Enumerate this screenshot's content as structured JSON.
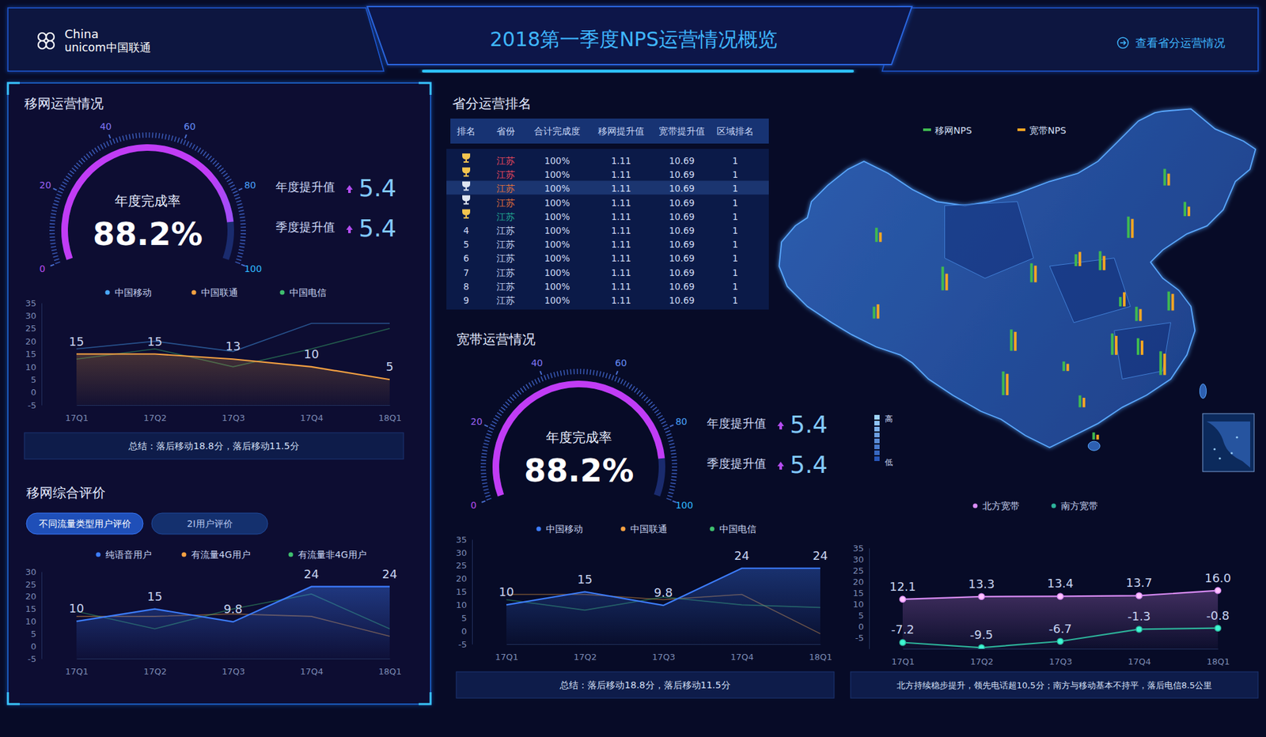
{
  "header": {
    "logo": [
      "China",
      "unicom中国联通"
    ],
    "title": "2018第一季度NPS运营情况概览",
    "link": "查看省分运营情况"
  },
  "panels": {
    "mobile_ops": "移网运营情况",
    "mobile_eval": "移网综合评价",
    "ranking": "省分运营排名",
    "broadband": "宽带运营情况"
  },
  "table": {
    "columns": [
      "排名",
      "省份",
      "合计完成度",
      "移网提升值",
      "宽带提升值",
      "区域排名"
    ],
    "rows": [
      [
        null,
        "江苏",
        "100%",
        "1.11",
        "10.69",
        "1"
      ],
      [
        null,
        "江苏",
        "100%",
        "1.11",
        "10.69",
        "1"
      ],
      [
        null,
        "江苏",
        "100%",
        "1.11",
        "10.69",
        "1"
      ],
      [
        null,
        "江苏",
        "100%",
        "1.11",
        "10.69",
        "1"
      ],
      [
        null,
        "江苏",
        "100%",
        "1.11",
        "10.69",
        "1"
      ],
      [
        "4",
        "江苏",
        "100%",
        "1.11",
        "10.69",
        "1"
      ],
      [
        "5",
        "江苏",
        "100%",
        "1.11",
        "10.69",
        "1"
      ],
      [
        "6",
        "江苏",
        "100%",
        "1.11",
        "10.69",
        "1"
      ],
      [
        "7",
        "江苏",
        "100%",
        "1.11",
        "10.69",
        "1"
      ],
      [
        "8",
        "江苏",
        "100%",
        "1.11",
        "10.69",
        "1"
      ],
      [
        "9",
        "江苏",
        "100%",
        "1.11",
        "10.69",
        "1"
      ]
    ],
    "colors": [
      "#e8485c",
      "#e8485c",
      "#e0703a",
      "#e0703a",
      "#22a892",
      "#c5d3ef",
      "#c5d3ef",
      "#c5d3ef",
      "#c5d3ef",
      "#c5d3ef",
      "#c5d3ef"
    ]
  },
  "chart_data": [
    {
      "type": "gauge",
      "title": "年度完成率",
      "values": [
        88.2
      ],
      "value_labels": [
        "88.2%"
      ],
      "ylim": [
        0,
        100
      ],
      "yticks": [
        0,
        20,
        40,
        60,
        80,
        100
      ],
      "stats": [
        {
          "label": "年度提升值",
          "value": 5.4
        },
        {
          "label": "季度提升值",
          "value": 5.4
        }
      ]
    },
    {
      "type": "line",
      "categories": [
        "17Q1",
        "17Q2",
        "17Q3",
        "17Q4",
        "18Q1"
      ],
      "ylim": [
        -5,
        35
      ],
      "yticks": [
        -5,
        0,
        5,
        10,
        15,
        20,
        25,
        30,
        35
      ],
      "grid": false,
      "legend": "top",
      "series": [
        {
          "name": "中国移动",
          "color": "#4aa8ff",
          "values": [
            17,
            20,
            16,
            27,
            27
          ]
        },
        {
          "name": "中国联通",
          "color": "#f5a142",
          "type": "area",
          "data_labels": true,
          "values": [
            15,
            15,
            13,
            10,
            5
          ]
        },
        {
          "name": "中国电信",
          "color": "#3fbf6f",
          "values": [
            13,
            17,
            10,
            17,
            25
          ]
        }
      ],
      "summary": "总结：落后移动18.8分，落后移动11.5分"
    },
    {
      "type": "line",
      "tabs": [
        "不同流量类型用户评价",
        "2I用户评价"
      ],
      "categories": [
        "17Q1",
        "17Q2",
        "17Q3",
        "17Q4",
        "18Q1"
      ],
      "ylim": [
        -5,
        30
      ],
      "yticks": [
        -5,
        0,
        5,
        10,
        15,
        20,
        25,
        30
      ],
      "grid": false,
      "legend": "top",
      "series": [
        {
          "name": "纯语音用户",
          "color": "#3d7dff",
          "type": "area",
          "data_labels": true,
          "values": [
            10,
            15,
            9.8,
            24,
            24
          ]
        },
        {
          "name": "有流量4G用户",
          "color": "#f5a142",
          "values": [
            12,
            12,
            13,
            12,
            4
          ]
        },
        {
          "name": "有流量非4G用户",
          "color": "#3fbf6f",
          "values": [
            14,
            7,
            15,
            21,
            7
          ]
        }
      ]
    },
    {
      "type": "gauge",
      "title": "年度完成率",
      "values": [
        88.2
      ],
      "value_labels": [
        "88.2%"
      ],
      "ylim": [
        0,
        100
      ],
      "yticks": [
        0,
        20,
        40,
        60,
        80,
        100
      ],
      "stats": [
        {
          "label": "年度提升值",
          "value": 5.4
        },
        {
          "label": "季度提升值",
          "value": 5.4
        }
      ]
    },
    {
      "type": "line",
      "categories": [
        "17Q1",
        "17Q2",
        "17Q3",
        "17Q4",
        "18Q1"
      ],
      "ylim": [
        -5,
        35
      ],
      "yticks": [
        -5,
        0,
        5,
        10,
        15,
        20,
        25,
        30,
        35
      ],
      "grid": false,
      "legend": "top",
      "series": [
        {
          "name": "中国移动",
          "color": "#3d7dff",
          "type": "area",
          "data_labels": true,
          "values": [
            10,
            15,
            9.8,
            24,
            24
          ]
        },
        {
          "name": "中国联通",
          "color": "#f5a142",
          "values": [
            14,
            14,
            12,
            14,
            -1
          ]
        },
        {
          "name": "中国电信",
          "color": "#3fbf6f",
          "values": [
            12,
            8,
            13,
            10,
            9
          ]
        }
      ],
      "summary": "总结：落后移动18.8分，落后移动11.5分"
    },
    {
      "type": "line",
      "categories": [
        "17Q1",
        "17Q2",
        "17Q3",
        "17Q4",
        "18Q1"
      ],
      "ylim": [
        -10,
        35
      ],
      "yticks": [
        -5,
        0,
        5,
        10,
        15,
        20,
        25,
        30,
        35
      ],
      "grid": false,
      "legend": "top",
      "series": [
        {
          "name": "北方宽带",
          "color": "#d98cf5",
          "type": "area",
          "marker": "circle",
          "data_labels": true,
          "values": [
            12.1,
            13.3,
            13.4,
            13.7,
            16
          ],
          "value_labels": [
            "12.1",
            "13.3",
            "13.4",
            "13.7",
            "16.0"
          ]
        },
        {
          "name": "南方宽带",
          "color": "#2db39a",
          "marker": "circle",
          "data_labels": true,
          "values": [
            -7.2,
            -9.5,
            -6.7,
            -1.3,
            -0.8
          ]
        }
      ],
      "summary": "北方持续稳步提升，领先电话超10,5分；南方与移动基本不持平，落后电信8.5公里"
    },
    {
      "type": "map",
      "ylim": [
        0,
        10
      ],
      "tick_labels": false,
      "legend": "top",
      "scale_labels": [
        "高",
        "低"
      ],
      "series": [
        {
          "name": "移网NPS",
          "color": "#3fb950",
          "values": [
            6,
            10,
            5,
            9,
            10,
            4,
            8,
            5,
            8,
            9,
            7,
            6,
            4,
            6,
            8,
            10,
            7,
            9,
            5,
            3
          ]
        },
        {
          "name": "宽带NPS",
          "color": "#f5a623",
          "values": [
            4,
            7,
            6,
            8,
            9,
            3,
            7,
            6,
            6,
            8,
            5,
            4,
            6,
            5,
            7,
            9,
            6,
            8,
            4,
            2
          ]
        }
      ]
    }
  ]
}
